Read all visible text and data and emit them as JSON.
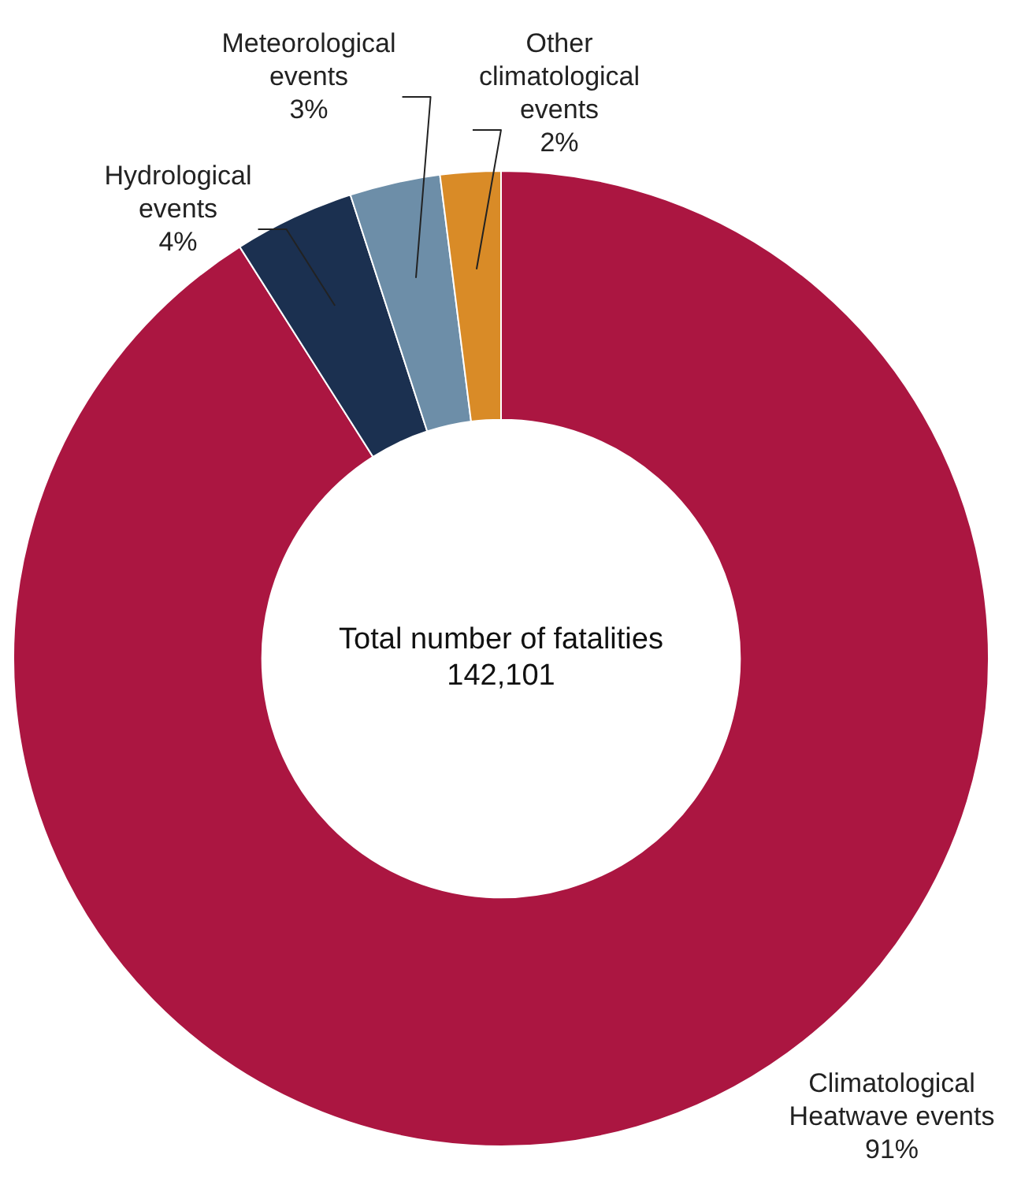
{
  "chart_data": {
    "type": "donut",
    "categories": [
      "Climatological Heatwave events",
      "Hydrological events",
      "Meteorological events",
      "Other climatological events"
    ],
    "values": [
      91,
      4,
      3,
      2
    ],
    "value_labels": [
      "91%",
      "4%",
      "3%",
      "2%"
    ],
    "colors": [
      "#ab1641",
      "#1b3050",
      "#6d8ea8",
      "#d98b27"
    ],
    "annotations": [
      "Total number of fatalities",
      "142,101"
    ]
  }
}
